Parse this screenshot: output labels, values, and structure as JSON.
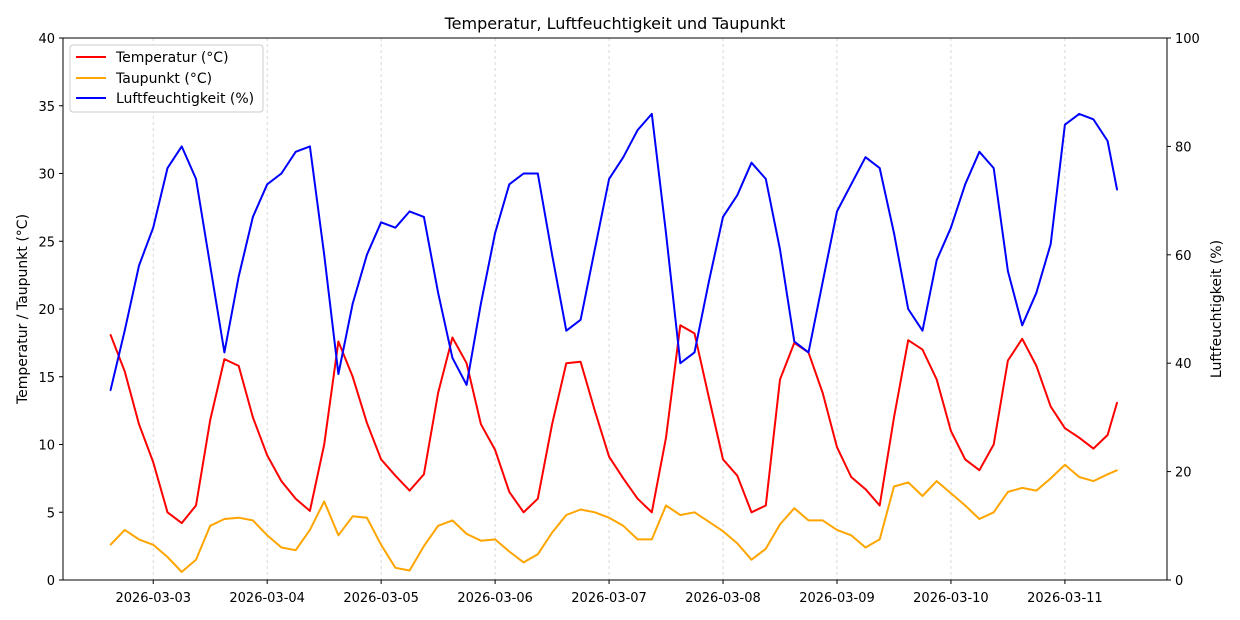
{
  "chart_data": {
    "type": "line",
    "title": "Temperatur, Luftfeuchtigkeit und Taupunkt",
    "ylabel": "Temperatur / Taupunkt (°C)",
    "ylabel_right": "Luftfeuchtigkeit (%)",
    "ylim": [
      0,
      40
    ],
    "ylim_right": [
      0,
      100
    ],
    "yticks": [
      0,
      5,
      10,
      15,
      20,
      25,
      30,
      35,
      40
    ],
    "yticks_right": [
      0,
      20,
      40,
      60,
      80,
      100
    ],
    "xlim": [
      "2026-03-02 05:00",
      "2026-03-11 21:30"
    ],
    "xticks": [
      "2026-03-03",
      "2026-03-04",
      "2026-03-05",
      "2026-03-06",
      "2026-03-07",
      "2026-03-08",
      "2026-03-09",
      "2026-03-10",
      "2026-03-11"
    ],
    "grid": "vertical dashed at x ticks",
    "legend": "top-left",
    "x": [
      "2026-03-02 15:00",
      "2026-03-02 18:00",
      "2026-03-02 21:00",
      "2026-03-03 00:00",
      "2026-03-03 03:00",
      "2026-03-03 06:00",
      "2026-03-03 09:00",
      "2026-03-03 12:00",
      "2026-03-03 15:00",
      "2026-03-03 18:00",
      "2026-03-03 21:00",
      "2026-03-04 00:00",
      "2026-03-04 03:00",
      "2026-03-04 06:00",
      "2026-03-04 09:00",
      "2026-03-04 12:00",
      "2026-03-04 15:00",
      "2026-03-04 18:00",
      "2026-03-04 21:00",
      "2026-03-05 00:00",
      "2026-03-05 03:00",
      "2026-03-05 06:00",
      "2026-03-05 09:00",
      "2026-03-05 12:00",
      "2026-03-05 15:00",
      "2026-03-05 18:00",
      "2026-03-05 21:00",
      "2026-03-06 00:00",
      "2026-03-06 03:00",
      "2026-03-06 06:00",
      "2026-03-06 09:00",
      "2026-03-06 12:00",
      "2026-03-06 15:00",
      "2026-03-06 18:00",
      "2026-03-06 21:00",
      "2026-03-07 00:00",
      "2026-03-07 03:00",
      "2026-03-07 06:00",
      "2026-03-07 09:00",
      "2026-03-07 12:00",
      "2026-03-07 15:00",
      "2026-03-07 18:00",
      "2026-03-07 21:00",
      "2026-03-08 00:00",
      "2026-03-08 03:00",
      "2026-03-08 06:00",
      "2026-03-08 09:00",
      "2026-03-08 12:00",
      "2026-03-08 15:00",
      "2026-03-08 18:00",
      "2026-03-08 21:00",
      "2026-03-09 00:00",
      "2026-03-09 03:00",
      "2026-03-09 06:00",
      "2026-03-09 09:00",
      "2026-03-09 12:00",
      "2026-03-09 15:00",
      "2026-03-09 18:00",
      "2026-03-09 21:00",
      "2026-03-10 00:00",
      "2026-03-10 03:00",
      "2026-03-10 06:00",
      "2026-03-10 09:00",
      "2026-03-10 12:00",
      "2026-03-10 15:00",
      "2026-03-10 18:00",
      "2026-03-10 21:00",
      "2026-03-11 00:00",
      "2026-03-11 03:00",
      "2026-03-11 06:00",
      "2026-03-11 09:00",
      "2026-03-11 11:00"
    ],
    "series": [
      {
        "name": "Temperatur (°C)",
        "axis": "left",
        "color": "#ff0000",
        "values": [
          18.1,
          15.4,
          11.5,
          8.7,
          5.0,
          4.2,
          5.5,
          11.8,
          16.3,
          15.8,
          12.0,
          9.2,
          7.3,
          6.0,
          5.1,
          10.0,
          17.6,
          15.0,
          11.6,
          8.9,
          7.7,
          6.6,
          7.8,
          13.8,
          17.9,
          16.0,
          11.5,
          9.6,
          6.5,
          5.0,
          6.0,
          11.5,
          16.0,
          16.1,
          12.5,
          9.1,
          7.5,
          6.0,
          5.0,
          10.5,
          18.8,
          18.2,
          13.5,
          8.9,
          7.7,
          5.0,
          5.5,
          14.8,
          17.5,
          16.8,
          13.8,
          9.8,
          7.6,
          6.7,
          5.5,
          12.0,
          17.7,
          17.0,
          14.8,
          11.0,
          8.9,
          8.1,
          10.0,
          16.2,
          17.8,
          15.8,
          12.8,
          11.2,
          10.5,
          9.7,
          10.7,
          13.1
        ]
      },
      {
        "name": "Taupunkt (°C)",
        "axis": "left",
        "color": "#ffa500",
        "values": [
          2.6,
          3.7,
          3.0,
          2.6,
          1.7,
          0.6,
          1.5,
          4.0,
          4.5,
          4.6,
          4.4,
          3.3,
          2.4,
          2.2,
          3.7,
          5.8,
          3.3,
          4.7,
          4.6,
          2.6,
          0.9,
          0.7,
          2.5,
          4.0,
          4.4,
          3.4,
          2.9,
          3.0,
          2.1,
          1.3,
          1.9,
          3.5,
          4.8,
          5.2,
          5.0,
          4.6,
          4.0,
          3.0,
          3.0,
          5.5,
          4.8,
          5.0,
          4.3,
          3.6,
          2.7,
          1.5,
          2.3,
          4.1,
          5.3,
          4.4,
          4.4,
          3.7,
          3.3,
          2.4,
          3.0,
          6.9,
          7.2,
          6.2,
          7.3,
          6.4,
          5.5,
          4.5,
          5.0,
          6.5,
          6.8,
          6.6,
          7.5,
          8.5,
          7.6,
          7.3,
          7.8,
          8.1
        ]
      },
      {
        "name": "Luftfeuchtigkeit (%)",
        "axis": "right",
        "color": "#0000ff",
        "values": [
          35,
          46,
          58,
          65,
          76,
          80,
          74,
          58,
          42,
          56,
          67,
          73,
          75,
          79,
          80,
          60,
          38,
          51,
          60,
          66,
          65,
          68,
          67,
          53,
          41,
          36,
          51,
          64,
          73,
          75,
          75,
          60,
          46,
          48,
          61,
          74,
          78,
          83,
          86,
          64,
          40,
          42,
          55,
          67,
          71,
          77,
          74,
          61,
          44,
          42,
          55,
          68,
          73,
          78,
          76,
          64,
          50,
          46,
          59,
          65,
          73,
          79,
          76,
          57,
          47,
          53,
          62,
          84,
          86,
          85,
          81,
          72
        ]
      }
    ]
  }
}
